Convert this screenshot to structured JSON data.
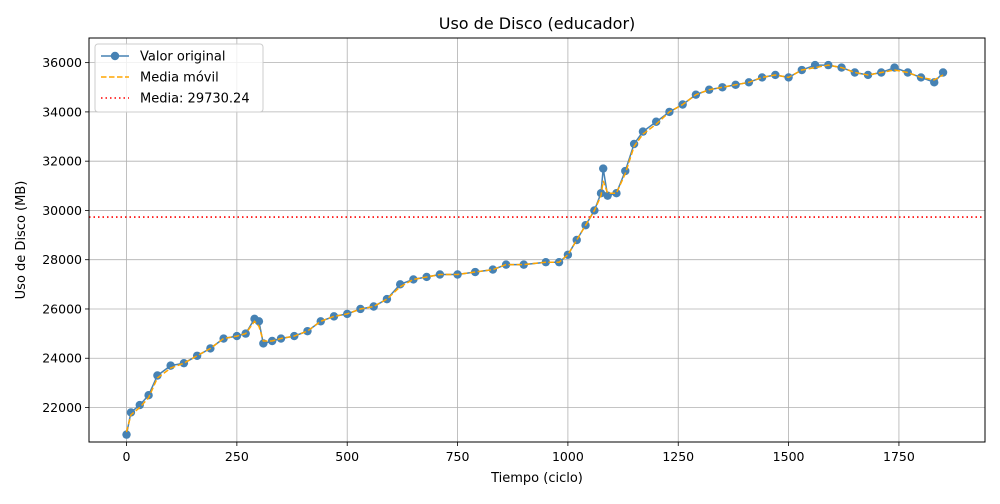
{
  "chart_data": {
    "type": "line",
    "title": "Uso de Disco (educador)",
    "xlabel": "Tiempo (ciclo)",
    "ylabel": "Uso de Disco (MB)",
    "xlim": [
      -85,
      1945
    ],
    "ylim": [
      20600,
      37000
    ],
    "x_ticks": [
      0,
      250,
      500,
      750,
      1000,
      1250,
      1500,
      1750
    ],
    "y_ticks": [
      22000,
      24000,
      26000,
      28000,
      30000,
      32000,
      34000,
      36000
    ],
    "grid": true,
    "legend_position": "top-left",
    "series": [
      {
        "name": "Valor original",
        "style": "line-with-circle-markers",
        "color": "#4682b4",
        "x": [
          0,
          10,
          30,
          50,
          70,
          100,
          130,
          160,
          190,
          220,
          250,
          270,
          290,
          300,
          310,
          330,
          350,
          380,
          410,
          440,
          470,
          500,
          530,
          560,
          590,
          620,
          650,
          680,
          710,
          750,
          790,
          830,
          860,
          900,
          950,
          980,
          1000,
          1020,
          1040,
          1060,
          1075,
          1080,
          1090,
          1110,
          1130,
          1150,
          1170,
          1200,
          1230,
          1260,
          1290,
          1320,
          1350,
          1380,
          1410,
          1440,
          1470,
          1500,
          1530,
          1560,
          1590,
          1620,
          1650,
          1680,
          1710,
          1740,
          1770,
          1800,
          1830,
          1850
        ],
        "y": [
          20900,
          21800,
          22100,
          22500,
          23300,
          23700,
          23800,
          24100,
          24400,
          24800,
          24900,
          25000,
          25600,
          25500,
          24600,
          24700,
          24800,
          24900,
          25100,
          25500,
          25700,
          25800,
          26000,
          26100,
          26400,
          27000,
          27200,
          27300,
          27400,
          27400,
          27500,
          27600,
          27800,
          27800,
          27900,
          27900,
          28200,
          28800,
          29400,
          30000,
          30700,
          31700,
          30600,
          30700,
          31600,
          32700,
          33200,
          33600,
          34000,
          34300,
          34700,
          34900,
          35000,
          35100,
          35200,
          35400,
          35500,
          35400,
          35700,
          35900,
          35900,
          35800,
          35600,
          35500,
          35600,
          35800,
          35600,
          35400,
          35200,
          35600
        ]
      },
      {
        "name": "Media móvil",
        "style": "dashed",
        "color": "#ffa500",
        "x": [
          0,
          10,
          30,
          50,
          70,
          100,
          130,
          160,
          190,
          220,
          250,
          270,
          290,
          300,
          310,
          330,
          350,
          380,
          410,
          440,
          470,
          500,
          530,
          560,
          590,
          620,
          650,
          680,
          710,
          750,
          790,
          830,
          860,
          900,
          950,
          980,
          1000,
          1020,
          1040,
          1060,
          1075,
          1080,
          1090,
          1110,
          1130,
          1150,
          1170,
          1200,
          1230,
          1260,
          1290,
          1320,
          1350,
          1380,
          1410,
          1440,
          1470,
          1500,
          1530,
          1560,
          1590,
          1620,
          1650,
          1680,
          1710,
          1740,
          1770,
          1800,
          1830,
          1850
        ],
        "y": [
          21000,
          21700,
          22000,
          22400,
          23200,
          23600,
          23800,
          24100,
          24400,
          24800,
          24900,
          25000,
          25500,
          25300,
          24700,
          24700,
          24800,
          24900,
          25100,
          25500,
          25700,
          25800,
          26000,
          26100,
          26400,
          26900,
          27200,
          27300,
          27400,
          27400,
          27500,
          27600,
          27800,
          27800,
          27900,
          27900,
          28200,
          28800,
          29400,
          30000,
          30600,
          31200,
          30700,
          30700,
          31500,
          32600,
          33100,
          33500,
          34000,
          34300,
          34700,
          34900,
          35000,
          35100,
          35200,
          35400,
          35500,
          35400,
          35700,
          35800,
          35900,
          35800,
          35600,
          35500,
          35600,
          35700,
          35600,
          35400,
          35300,
          35500
        ]
      }
    ],
    "hline": {
      "name": "Media: 29730.24",
      "value": 29730.24,
      "style": "dotted",
      "color": "#ff0000"
    }
  }
}
